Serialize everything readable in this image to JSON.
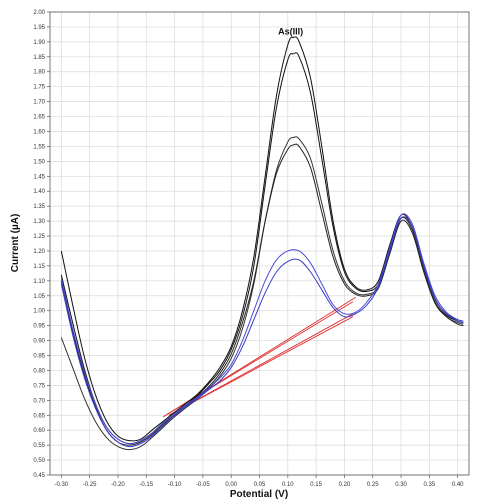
{
  "chart_data": {
    "type": "line",
    "title": "",
    "xlabel": "Potential (V)",
    "ylabel": "Current (µA)",
    "xlim": [
      -0.32,
      0.42
    ],
    "ylim": [
      0.45,
      2.0
    ],
    "grid": true,
    "x_ticks": [
      "-0.30",
      "-0.25",
      "-0.20",
      "-0.15",
      "-0.10",
      "-0.05",
      "0.00",
      "0.05",
      "0.10",
      "0.15",
      "0.20",
      "0.25",
      "0.30",
      "0.35",
      "0.40"
    ],
    "y_ticks": [
      "0.45",
      "0.50",
      "0.55",
      "0.60",
      "0.65",
      "0.70",
      "0.75",
      "0.80",
      "0.85",
      "0.90",
      "0.95",
      "1.00",
      "1.05",
      "1.10",
      "1.15",
      "1.20",
      "1.25",
      "1.30",
      "1.35",
      "1.40",
      "1.45",
      "1.50",
      "1.55",
      "1.60",
      "1.65",
      "1.70",
      "1.75",
      "1.80",
      "1.85",
      "1.90",
      "1.95",
      "2.00"
    ],
    "annotations": [
      {
        "text": "As(III)",
        "x": 0.105,
        "y": 1.925
      }
    ],
    "series": [
      {
        "color": "#111111",
        "points": [
          [
            -0.3,
            1.2
          ],
          [
            -0.28,
            1.02
          ],
          [
            -0.26,
            0.85
          ],
          [
            -0.24,
            0.72
          ],
          [
            -0.22,
            0.63
          ],
          [
            -0.2,
            0.58
          ],
          [
            -0.18,
            0.565
          ],
          [
            -0.16,
            0.57
          ],
          [
            -0.14,
            0.6
          ],
          [
            -0.12,
            0.63
          ],
          [
            -0.1,
            0.66
          ],
          [
            -0.08,
            0.69
          ],
          [
            -0.06,
            0.72
          ],
          [
            -0.04,
            0.76
          ],
          [
            -0.02,
            0.81
          ],
          [
            0.0,
            0.88
          ],
          [
            0.02,
            1.0
          ],
          [
            0.04,
            1.18
          ],
          [
            0.06,
            1.45
          ],
          [
            0.08,
            1.72
          ],
          [
            0.1,
            1.89
          ],
          [
            0.11,
            1.915
          ],
          [
            0.12,
            1.9
          ],
          [
            0.14,
            1.78
          ],
          [
            0.16,
            1.55
          ],
          [
            0.18,
            1.3
          ],
          [
            0.2,
            1.14
          ],
          [
            0.22,
            1.08
          ],
          [
            0.24,
            1.07
          ],
          [
            0.26,
            1.1
          ],
          [
            0.28,
            1.22
          ],
          [
            0.3,
            1.32
          ],
          [
            0.32,
            1.28
          ],
          [
            0.34,
            1.15
          ],
          [
            0.36,
            1.04
          ],
          [
            0.38,
            0.99
          ],
          [
            0.4,
            0.97
          ],
          [
            0.41,
            0.965
          ]
        ]
      },
      {
        "color": "#111111",
        "points": [
          [
            -0.3,
            1.12
          ],
          [
            -0.28,
            0.96
          ],
          [
            -0.26,
            0.81
          ],
          [
            -0.24,
            0.69
          ],
          [
            -0.22,
            0.61
          ],
          [
            -0.2,
            0.57
          ],
          [
            -0.18,
            0.555
          ],
          [
            -0.16,
            0.565
          ],
          [
            -0.14,
            0.59
          ],
          [
            -0.12,
            0.625
          ],
          [
            -0.1,
            0.655
          ],
          [
            -0.08,
            0.685
          ],
          [
            -0.06,
            0.715
          ],
          [
            -0.04,
            0.755
          ],
          [
            -0.02,
            0.8
          ],
          [
            0.0,
            0.87
          ],
          [
            0.02,
            0.98
          ],
          [
            0.04,
            1.15
          ],
          [
            0.06,
            1.42
          ],
          [
            0.08,
            1.68
          ],
          [
            0.1,
            1.84
          ],
          [
            0.11,
            1.86
          ],
          [
            0.12,
            1.85
          ],
          [
            0.14,
            1.73
          ],
          [
            0.16,
            1.51
          ],
          [
            0.18,
            1.28
          ],
          [
            0.2,
            1.13
          ],
          [
            0.22,
            1.075
          ],
          [
            0.24,
            1.065
          ],
          [
            0.26,
            1.09
          ],
          [
            0.28,
            1.21
          ],
          [
            0.3,
            1.31
          ],
          [
            0.32,
            1.27
          ],
          [
            0.34,
            1.14
          ],
          [
            0.36,
            1.03
          ],
          [
            0.38,
            0.985
          ],
          [
            0.4,
            0.965
          ],
          [
            0.41,
            0.96
          ]
        ]
      },
      {
        "color": "#333333",
        "points": [
          [
            -0.3,
            0.91
          ],
          [
            -0.28,
            0.81
          ],
          [
            -0.26,
            0.71
          ],
          [
            -0.24,
            0.63
          ],
          [
            -0.22,
            0.575
          ],
          [
            -0.2,
            0.545
          ],
          [
            -0.18,
            0.535
          ],
          [
            -0.16,
            0.545
          ],
          [
            -0.14,
            0.575
          ],
          [
            -0.12,
            0.61
          ],
          [
            -0.1,
            0.645
          ],
          [
            -0.08,
            0.675
          ],
          [
            -0.06,
            0.705
          ],
          [
            -0.04,
            0.74
          ],
          [
            -0.02,
            0.78
          ],
          [
            0.0,
            0.84
          ],
          [
            0.02,
            0.94
          ],
          [
            0.04,
            1.09
          ],
          [
            0.06,
            1.3
          ],
          [
            0.08,
            1.47
          ],
          [
            0.1,
            1.565
          ],
          [
            0.11,
            1.58
          ],
          [
            0.12,
            1.575
          ],
          [
            0.14,
            1.51
          ],
          [
            0.16,
            1.36
          ],
          [
            0.18,
            1.2
          ],
          [
            0.2,
            1.1
          ],
          [
            0.22,
            1.06
          ],
          [
            0.24,
            1.055
          ],
          [
            0.26,
            1.08
          ],
          [
            0.28,
            1.2
          ],
          [
            0.3,
            1.31
          ],
          [
            0.32,
            1.27
          ],
          [
            0.34,
            1.14
          ],
          [
            0.36,
            1.03
          ],
          [
            0.38,
            0.98
          ],
          [
            0.4,
            0.96
          ],
          [
            0.41,
            0.955
          ]
        ]
      },
      {
        "color": "#222222",
        "points": [
          [
            -0.3,
            1.1
          ],
          [
            -0.28,
            0.93
          ],
          [
            -0.26,
            0.79
          ],
          [
            -0.24,
            0.68
          ],
          [
            -0.22,
            0.6
          ],
          [
            -0.2,
            0.56
          ],
          [
            -0.18,
            0.55
          ],
          [
            -0.16,
            0.56
          ],
          [
            -0.14,
            0.585
          ],
          [
            -0.12,
            0.62
          ],
          [
            -0.1,
            0.65
          ],
          [
            -0.08,
            0.68
          ],
          [
            -0.06,
            0.71
          ],
          [
            -0.04,
            0.745
          ],
          [
            -0.02,
            0.79
          ],
          [
            0.0,
            0.855
          ],
          [
            0.02,
            0.96
          ],
          [
            0.04,
            1.1
          ],
          [
            0.06,
            1.3
          ],
          [
            0.08,
            1.46
          ],
          [
            0.1,
            1.54
          ],
          [
            0.11,
            1.555
          ],
          [
            0.12,
            1.55
          ],
          [
            0.14,
            1.48
          ],
          [
            0.16,
            1.33
          ],
          [
            0.18,
            1.18
          ],
          [
            0.2,
            1.09
          ],
          [
            0.22,
            1.055
          ],
          [
            0.24,
            1.05
          ],
          [
            0.26,
            1.075
          ],
          [
            0.28,
            1.19
          ],
          [
            0.3,
            1.3
          ],
          [
            0.32,
            1.26
          ],
          [
            0.34,
            1.13
          ],
          [
            0.36,
            1.025
          ],
          [
            0.38,
            0.98
          ],
          [
            0.4,
            0.955
          ],
          [
            0.41,
            0.95
          ]
        ]
      },
      {
        "color": "#4a4ad8",
        "points": [
          [
            -0.3,
            1.11
          ],
          [
            -0.28,
            0.94
          ],
          [
            -0.26,
            0.8
          ],
          [
            -0.24,
            0.69
          ],
          [
            -0.22,
            0.61
          ],
          [
            -0.2,
            0.57
          ],
          [
            -0.18,
            0.555
          ],
          [
            -0.16,
            0.565
          ],
          [
            -0.14,
            0.59
          ],
          [
            -0.12,
            0.625
          ],
          [
            -0.1,
            0.655
          ],
          [
            -0.08,
            0.685
          ],
          [
            -0.06,
            0.71
          ],
          [
            -0.04,
            0.74
          ],
          [
            -0.02,
            0.775
          ],
          [
            0.0,
            0.82
          ],
          [
            0.02,
            0.9
          ],
          [
            0.04,
            1.0
          ],
          [
            0.06,
            1.1
          ],
          [
            0.08,
            1.17
          ],
          [
            0.1,
            1.2
          ],
          [
            0.12,
            1.2
          ],
          [
            0.14,
            1.16
          ],
          [
            0.16,
            1.09
          ],
          [
            0.18,
            1.02
          ],
          [
            0.2,
            0.99
          ],
          [
            0.22,
            0.995
          ],
          [
            0.24,
            1.03
          ],
          [
            0.26,
            1.09
          ],
          [
            0.28,
            1.21
          ],
          [
            0.3,
            1.32
          ],
          [
            0.32,
            1.29
          ],
          [
            0.34,
            1.16
          ],
          [
            0.36,
            1.05
          ],
          [
            0.38,
            0.995
          ],
          [
            0.4,
            0.97
          ],
          [
            0.41,
            0.965
          ]
        ]
      },
      {
        "color": "#3a3ac8",
        "points": [
          [
            -0.3,
            1.09
          ],
          [
            -0.28,
            0.92
          ],
          [
            -0.26,
            0.78
          ],
          [
            -0.24,
            0.675
          ],
          [
            -0.22,
            0.6
          ],
          [
            -0.2,
            0.56
          ],
          [
            -0.18,
            0.545
          ],
          [
            -0.16,
            0.555
          ],
          [
            -0.14,
            0.58
          ],
          [
            -0.12,
            0.615
          ],
          [
            -0.1,
            0.65
          ],
          [
            -0.08,
            0.68
          ],
          [
            -0.06,
            0.705
          ],
          [
            -0.04,
            0.735
          ],
          [
            -0.02,
            0.765
          ],
          [
            0.0,
            0.81
          ],
          [
            0.02,
            0.88
          ],
          [
            0.04,
            0.97
          ],
          [
            0.06,
            1.06
          ],
          [
            0.08,
            1.13
          ],
          [
            0.1,
            1.165
          ],
          [
            0.12,
            1.17
          ],
          [
            0.14,
            1.13
          ],
          [
            0.16,
            1.07
          ],
          [
            0.18,
            1.01
          ],
          [
            0.2,
            0.98
          ],
          [
            0.22,
            0.99
          ],
          [
            0.24,
            1.02
          ],
          [
            0.26,
            1.08
          ],
          [
            0.28,
            1.2
          ],
          [
            0.3,
            1.31
          ],
          [
            0.32,
            1.28
          ],
          [
            0.34,
            1.15
          ],
          [
            0.36,
            1.04
          ],
          [
            0.38,
            0.99
          ],
          [
            0.4,
            0.965
          ],
          [
            0.41,
            0.96
          ]
        ]
      }
    ],
    "baselines": [
      {
        "color": "#e03030",
        "x1": -0.12,
        "y1": 0.645,
        "x2": 0.22,
        "y2": 1.045
      },
      {
        "color": "#e03030",
        "x1": -0.12,
        "y1": 0.645,
        "x2": 0.215,
        "y2": 1.03
      },
      {
        "color": "#e03030",
        "x1": -0.11,
        "y1": 0.65,
        "x2": 0.22,
        "y2": 0.995
      },
      {
        "color": "#e03030",
        "x1": -0.11,
        "y1": 0.65,
        "x2": 0.215,
        "y2": 0.98
      }
    ]
  }
}
